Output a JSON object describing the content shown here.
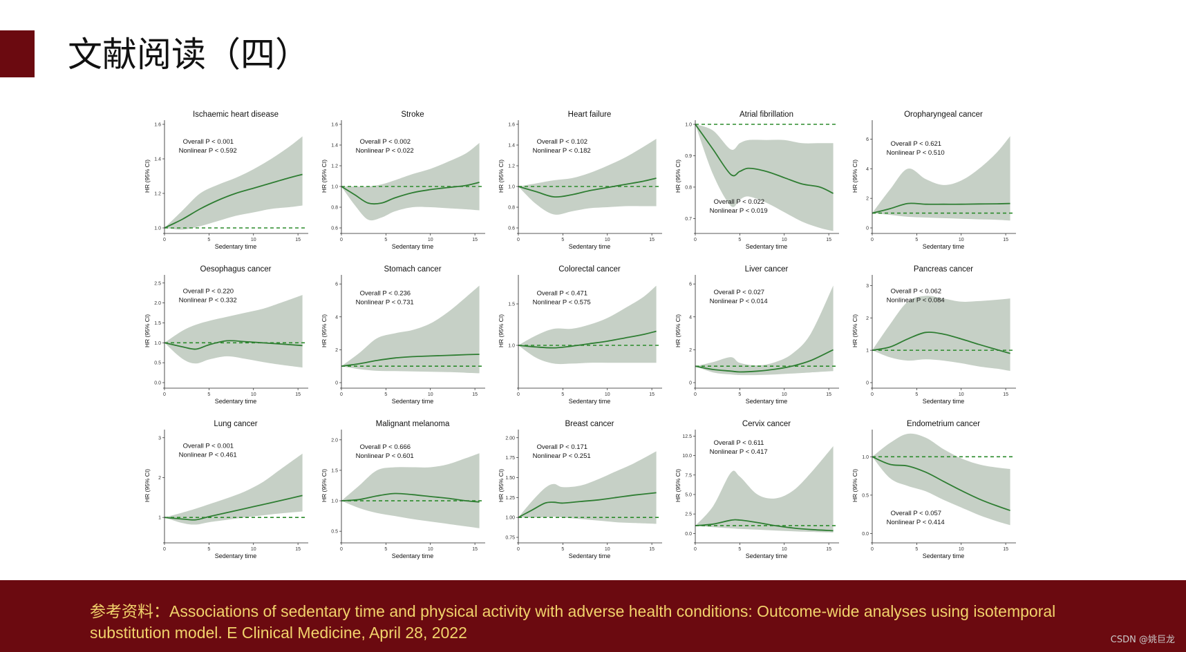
{
  "slide": {
    "title": "文献阅读（四）",
    "reference": "参考资料：Associations of sedentary time and physical activity with adverse health conditions: Outcome-wide analyses using isotemporal substitution model. E Clinical Medicine, April 28, 2022",
    "watermark": "CSDN @姚巨龙"
  },
  "colors": {
    "accent": "#6b0a10",
    "reference_text": "#f2d36b",
    "line": "#2e7d32",
    "band": "#c6d0c6",
    "ref_line": "#2a8a2a"
  },
  "chart_data": [
    {
      "type": "line",
      "title": "Ischaemic heart disease",
      "xlabel": "Sedentary time",
      "ylabel": "HR (95% CI)",
      "xlim": [
        0,
        16
      ],
      "ylim": [
        1.0,
        1.6
      ],
      "xticks": [
        "0",
        "5",
        "10",
        "15"
      ],
      "yticks": [
        "1.0",
        "1.2",
        "1.4",
        "1.6"
      ],
      "ref": 1.0,
      "annotation": [
        "Overall  P < 0.001",
        "Nonlinear  P < 0.592"
      ],
      "x": [
        0,
        2,
        4,
        6,
        8,
        10,
        12,
        14,
        15.5
      ],
      "y": [
        1.0,
        1.05,
        1.11,
        1.16,
        1.2,
        1.23,
        1.26,
        1.29,
        1.31
      ],
      "lower": [
        1.0,
        0.99,
        1.01,
        1.04,
        1.07,
        1.09,
        1.11,
        1.12,
        1.13
      ],
      "upper": [
        1.0,
        1.1,
        1.2,
        1.25,
        1.29,
        1.34,
        1.4,
        1.47,
        1.53
      ]
    },
    {
      "type": "line",
      "title": "Stroke",
      "xlabel": "Sedentary time",
      "ylabel": "HR (95% CI)",
      "xlim": [
        0,
        16
      ],
      "ylim": [
        0.6,
        1.6
      ],
      "xticks": [
        "0",
        "5",
        "10",
        "15"
      ],
      "yticks": [
        "0.6",
        "0.8",
        "1.0",
        "1.2",
        "1.4",
        "1.6"
      ],
      "ref": 1.0,
      "annotation": [
        "Overall  P < 0.002",
        "Nonlinear  P < 0.022"
      ],
      "x": [
        0,
        1.5,
        3,
        4.5,
        6,
        8,
        10,
        12,
        14,
        15.5
      ],
      "y": [
        1.0,
        0.92,
        0.84,
        0.84,
        0.89,
        0.94,
        0.97,
        0.99,
        1.01,
        1.04
      ],
      "lower": [
        1.0,
        0.82,
        0.68,
        0.7,
        0.76,
        0.8,
        0.8,
        0.79,
        0.78,
        0.77
      ],
      "upper": [
        1.0,
        1.0,
        1.0,
        1.02,
        1.06,
        1.12,
        1.17,
        1.24,
        1.32,
        1.42
      ]
    },
    {
      "type": "line",
      "title": "Heart failure",
      "xlabel": "Sedentary time",
      "ylabel": "HR (95% CI)",
      "xlim": [
        0,
        16
      ],
      "ylim": [
        0.6,
        1.6
      ],
      "xticks": [
        "0",
        "5",
        "10",
        "15"
      ],
      "yticks": [
        "0.6",
        "0.8",
        "1.0",
        "1.2",
        "1.4",
        "1.6"
      ],
      "ref": 1.0,
      "annotation": [
        "Overall  P < 0.102",
        "Nonlinear  P < 0.182"
      ],
      "x": [
        0,
        2,
        4,
        6,
        8,
        10,
        12,
        14,
        15.5
      ],
      "y": [
        1.0,
        0.95,
        0.9,
        0.92,
        0.96,
        0.99,
        1.02,
        1.05,
        1.08
      ],
      "lower": [
        1.0,
        0.83,
        0.73,
        0.76,
        0.79,
        0.8,
        0.81,
        0.81,
        0.81
      ],
      "upper": [
        1.0,
        1.03,
        1.06,
        1.08,
        1.13,
        1.2,
        1.28,
        1.38,
        1.46
      ]
    },
    {
      "type": "line",
      "title": "Atrial fibrillation",
      "xlabel": "Sedentary time",
      "ylabel": "HR (95% CI)",
      "xlim": [
        0,
        16
      ],
      "ylim": [
        0.67,
        1.0
      ],
      "xticks": [
        "0",
        "5",
        "10",
        "15"
      ],
      "yticks": [
        "0.7",
        "0.8",
        "0.9",
        "1.0"
      ],
      "ref": 1.0,
      "annotation": [
        "Overall  P < 0.022",
        "Nonlinear  P < 0.019"
      ],
      "x": [
        0,
        2,
        4,
        5,
        6,
        8,
        10,
        12,
        14,
        15.5
      ],
      "y": [
        1.0,
        0.92,
        0.84,
        0.85,
        0.86,
        0.85,
        0.83,
        0.81,
        0.8,
        0.78
      ],
      "lower": [
        1.0,
        0.84,
        0.74,
        0.76,
        0.77,
        0.75,
        0.72,
        0.69,
        0.67,
        0.66
      ],
      "upper": [
        1.0,
        0.98,
        0.92,
        0.94,
        0.95,
        0.95,
        0.95,
        0.94,
        0.94,
        0.94
      ]
    },
    {
      "type": "line",
      "title": "Oropharyngeal cancer",
      "xlabel": "Sedentary time",
      "ylabel": "HR (95% CI)",
      "xlim": [
        0,
        16
      ],
      "ylim": [
        0,
        7
      ],
      "xticks": [
        "0",
        "5",
        "10",
        "15"
      ],
      "yticks": [
        "0",
        "2",
        "4",
        "6"
      ],
      "ref": 1.0,
      "annotation": [
        "Overall  P < 0.621",
        "Nonlinear  P < 0.510"
      ],
      "x": [
        0,
        2,
        4,
        6,
        8,
        10,
        12,
        14,
        15.5
      ],
      "y": [
        1.0,
        1.3,
        1.65,
        1.6,
        1.6,
        1.6,
        1.62,
        1.63,
        1.65
      ],
      "lower": [
        1.0,
        0.88,
        0.75,
        0.7,
        0.66,
        0.62,
        0.58,
        0.55,
        0.5
      ],
      "upper": [
        1.0,
        2.6,
        4.0,
        3.3,
        2.9,
        3.2,
        4.0,
        5.1,
        6.2
      ]
    },
    {
      "type": "line",
      "title": "Oesophagus cancer",
      "xlabel": "Sedentary time",
      "ylabel": "HR (95% CI)",
      "xlim": [
        0,
        16
      ],
      "ylim": [
        0,
        2.6
      ],
      "xticks": [
        "0",
        "5",
        "10",
        "15"
      ],
      "yticks": [
        "0.0",
        "0.5",
        "1.0",
        "1.5",
        "2.0",
        "2.5"
      ],
      "ref": 1.0,
      "annotation": [
        "Overall  P < 0.220",
        "Nonlinear  P < 0.332"
      ],
      "x": [
        0,
        2,
        3.5,
        5,
        7,
        9,
        11,
        13,
        15.5
      ],
      "y": [
        1.0,
        0.9,
        0.84,
        0.95,
        1.05,
        1.03,
        1.0,
        0.97,
        0.93
      ],
      "lower": [
        1.0,
        0.6,
        0.48,
        0.58,
        0.66,
        0.6,
        0.52,
        0.45,
        0.38
      ],
      "upper": [
        1.0,
        1.3,
        1.45,
        1.55,
        1.65,
        1.75,
        1.85,
        2.0,
        2.2
      ]
    },
    {
      "type": "line",
      "title": "Stomach cancer",
      "xlabel": "Sedentary time",
      "ylabel": "HR (95% CI)",
      "xlim": [
        0,
        16
      ],
      "ylim": [
        0,
        6.3
      ],
      "xticks": [
        "0",
        "5",
        "10",
        "15"
      ],
      "yticks": [
        "0",
        "2",
        "4",
        "6"
      ],
      "ref": 1.0,
      "annotation": [
        "Overall  P < 0.236",
        "Nonlinear  P < 0.731"
      ],
      "x": [
        0,
        2,
        4,
        6,
        8,
        10,
        12,
        14,
        15.5
      ],
      "y": [
        1.0,
        1.15,
        1.35,
        1.5,
        1.58,
        1.62,
        1.66,
        1.7,
        1.72
      ],
      "lower": [
        1.0,
        0.82,
        0.72,
        0.7,
        0.68,
        0.66,
        0.64,
        0.6,
        0.57
      ],
      "upper": [
        1.0,
        1.8,
        2.7,
        3.0,
        3.2,
        3.6,
        4.3,
        5.2,
        5.9
      ]
    },
    {
      "type": "line",
      "title": "Colorectal cancer",
      "xlabel": "Sedentary time",
      "ylabel": "HR (95% CI)",
      "xlim": [
        0,
        16
      ],
      "ylim": [
        0.55,
        1.8
      ],
      "xticks": [
        "0",
        "5",
        "10",
        "15"
      ],
      "yticks": [
        "1.0",
        "1.5"
      ],
      "ref": 1.0,
      "annotation": [
        "Overall  P < 0.471",
        "Nonlinear  P < 0.575"
      ],
      "x": [
        0,
        2,
        4,
        6,
        8,
        10,
        12,
        14,
        15.5
      ],
      "y": [
        1.0,
        0.98,
        0.97,
        0.99,
        1.02,
        1.05,
        1.09,
        1.13,
        1.17
      ],
      "lower": [
        1.0,
        0.85,
        0.78,
        0.78,
        0.79,
        0.79,
        0.79,
        0.79,
        0.79
      ],
      "upper": [
        1.0,
        1.12,
        1.2,
        1.2,
        1.25,
        1.33,
        1.45,
        1.58,
        1.72
      ]
    },
    {
      "type": "line",
      "title": "Liver cancer",
      "xlabel": "Sedentary time",
      "ylabel": "HR (95% CI)",
      "xlim": [
        0,
        16
      ],
      "ylim": [
        0,
        6.3
      ],
      "xticks": [
        "0",
        "5",
        "10",
        "15"
      ],
      "yticks": [
        "0",
        "2",
        "4",
        "6"
      ],
      "ref": 1.0,
      "annotation": [
        "Overall  P < 0.027",
        "Nonlinear  P < 0.014"
      ],
      "x": [
        0,
        2,
        4,
        5,
        7,
        9,
        11,
        13,
        15.5
      ],
      "y": [
        1.0,
        0.8,
        0.7,
        0.65,
        0.7,
        0.82,
        1.02,
        1.35,
        2.0
      ],
      "lower": [
        1.0,
        0.62,
        0.5,
        0.46,
        0.46,
        0.5,
        0.56,
        0.62,
        0.7
      ],
      "upper": [
        1.0,
        1.25,
        1.55,
        1.2,
        1.05,
        1.25,
        1.8,
        3.0,
        5.9
      ]
    },
    {
      "type": "line",
      "title": "Pancreas cancer",
      "xlabel": "Sedentary time",
      "ylabel": "HR (95% CI)",
      "xlim": [
        0,
        16
      ],
      "ylim": [
        0,
        3.2
      ],
      "xticks": [
        "0",
        "5",
        "10",
        "15"
      ],
      "yticks": [
        "0",
        "1",
        "2",
        "3"
      ],
      "ref": 1.0,
      "annotation": [
        "Overall  P < 0.062",
        "Nonlinear  P < 0.084"
      ],
      "x": [
        0,
        2,
        4,
        6,
        8,
        10,
        12,
        14,
        15.5
      ],
      "y": [
        1.0,
        1.1,
        1.35,
        1.55,
        1.5,
        1.35,
        1.18,
        1.02,
        0.9
      ],
      "lower": [
        1.0,
        0.78,
        0.68,
        0.72,
        0.68,
        0.6,
        0.5,
        0.43,
        0.36
      ],
      "upper": [
        1.0,
        1.8,
        2.5,
        2.68,
        2.6,
        2.5,
        2.52,
        2.56,
        2.6
      ]
    },
    {
      "type": "line",
      "title": "Lung cancer",
      "xlabel": "Sedentary time",
      "ylabel": "HR (95% CI)",
      "xlim": [
        0,
        16
      ],
      "ylim": [
        0.5,
        3.1
      ],
      "xticks": [
        "0",
        "5",
        "10",
        "15"
      ],
      "yticks": [
        "1",
        "2",
        "3"
      ],
      "ref": 1.0,
      "annotation": [
        "Overall  P < 0.001",
        "Nonlinear  P < 0.461"
      ],
      "x": [
        0,
        2,
        3.5,
        5,
        7,
        9,
        11,
        13,
        15.5
      ],
      "y": [
        1.0,
        0.96,
        0.94,
        1.02,
        1.12,
        1.22,
        1.32,
        1.42,
        1.55
      ],
      "lower": [
        1.0,
        0.86,
        0.82,
        0.88,
        0.94,
        1.0,
        1.05,
        1.1,
        1.15
      ],
      "upper": [
        1.0,
        1.12,
        1.22,
        1.33,
        1.48,
        1.65,
        1.88,
        2.2,
        2.6
      ]
    },
    {
      "type": "line",
      "title": "Malignant melanoma",
      "xlabel": "Sedentary time",
      "ylabel": "HR (95% CI)",
      "xlim": [
        0,
        16
      ],
      "ylim": [
        0.4,
        2.1
      ],
      "xticks": [
        "0",
        "5",
        "10",
        "15"
      ],
      "yticks": [
        "0.5",
        "1.0",
        "1.5",
        "2.0"
      ],
      "ref": 1.0,
      "annotation": [
        "Overall  P < 0.666",
        "Nonlinear  P < 0.601"
      ],
      "x": [
        0,
        2,
        4,
        6,
        8,
        10,
        12,
        14,
        15.5
      ],
      "y": [
        1.0,
        1.02,
        1.08,
        1.12,
        1.1,
        1.07,
        1.04,
        1.0,
        0.98
      ],
      "lower": [
        1.0,
        0.88,
        0.8,
        0.75,
        0.7,
        0.66,
        0.62,
        0.58,
        0.55
      ],
      "upper": [
        1.0,
        1.25,
        1.5,
        1.55,
        1.55,
        1.55,
        1.6,
        1.7,
        1.78
      ]
    },
    {
      "type": "line",
      "title": "Breast cancer",
      "xlabel": "Sedentary time",
      "ylabel": "HR (95% CI)",
      "xlim": [
        0,
        16
      ],
      "ylim": [
        0.75,
        2.05
      ],
      "xticks": [
        "0",
        "5",
        "10",
        "15"
      ],
      "yticks": [
        "0.75",
        "1.00",
        "1.25",
        "1.50",
        "1.75",
        "2.00"
      ],
      "ref": 1.0,
      "annotation": [
        "Overall  P < 0.171",
        "Nonlinear  P < 0.251"
      ],
      "x": [
        0,
        1.5,
        3,
        4,
        5,
        7,
        9,
        11,
        13,
        15.5
      ],
      "y": [
        1.0,
        1.09,
        1.18,
        1.19,
        1.18,
        1.2,
        1.22,
        1.25,
        1.28,
        1.31
      ],
      "lower": [
        1.0,
        1.0,
        1.0,
        1.01,
        1.0,
        0.98,
        0.96,
        0.94,
        0.93,
        0.92
      ],
      "upper": [
        1.0,
        1.2,
        1.37,
        1.42,
        1.38,
        1.4,
        1.48,
        1.58,
        1.68,
        1.83
      ]
    },
    {
      "type": "line",
      "title": "Cervix cancer",
      "xlabel": "Sedentary time",
      "ylabel": "HR (95% CI)",
      "xlim": [
        0,
        16
      ],
      "ylim": [
        -0.5,
        12.8
      ],
      "xticks": [
        "0",
        "5",
        "10",
        "15"
      ],
      "yticks": [
        "0.0",
        "2.5",
        "5.0",
        "7.5",
        "10.0",
        "12.5"
      ],
      "ref": 1.0,
      "annotation": [
        "Overall  P < 0.611",
        "Nonlinear  P < 0.417"
      ],
      "x": [
        0,
        2,
        4,
        5,
        7,
        9,
        11,
        13,
        15.5
      ],
      "y": [
        1.0,
        1.2,
        1.7,
        1.72,
        1.4,
        1.0,
        0.7,
        0.5,
        0.35
      ],
      "lower": [
        1.0,
        0.8,
        0.65,
        0.58,
        0.48,
        0.38,
        0.28,
        0.2,
        0.12
      ],
      "upper": [
        1.0,
        3.5,
        7.8,
        7.3,
        5.0,
        4.5,
        5.5,
        7.8,
        11.2
      ]
    },
    {
      "type": "line",
      "title": "Endometrium cancer",
      "xlabel": "Sedentary time",
      "ylabel": "HR (95% CI)",
      "xlim": [
        0,
        16
      ],
      "ylim": [
        -0.05,
        1.3
      ],
      "xticks": [
        "0",
        "5",
        "10",
        "15"
      ],
      "yticks": [
        "0.0",
        "0.5",
        "1.0"
      ],
      "ref": 1.0,
      "annotation": [
        "Overall  P < 0.057",
        "Nonlinear  P < 0.414"
      ],
      "x": [
        0,
        2,
        4,
        6,
        8,
        10,
        12,
        14,
        15.5
      ],
      "y": [
        1.0,
        0.9,
        0.88,
        0.8,
        0.68,
        0.56,
        0.45,
        0.36,
        0.3
      ],
      "lower": [
        1.0,
        0.72,
        0.62,
        0.55,
        0.44,
        0.34,
        0.24,
        0.16,
        0.11
      ],
      "upper": [
        1.0,
        1.18,
        1.3,
        1.25,
        1.1,
        0.98,
        0.9,
        0.86,
        0.84
      ]
    }
  ]
}
